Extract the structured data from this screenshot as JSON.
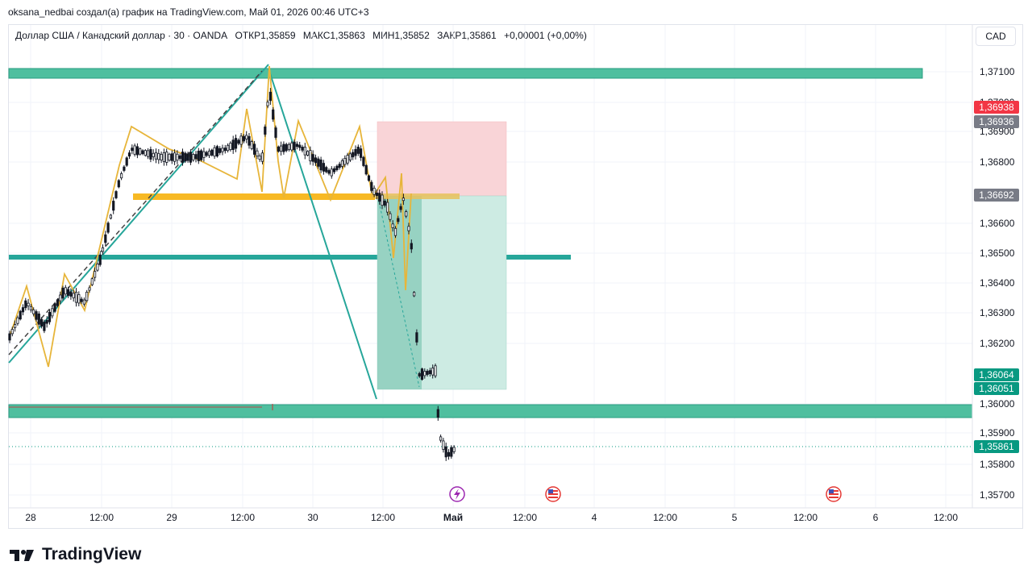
{
  "caption": "oksana_nedbai создал(а) график на TradingView.com, Май 01, 2026 00:46 UTC+3",
  "header": {
    "symbol": "Доллар США / Канадский доллар · 30 · OANDA",
    "open": "ОТКР1,35859",
    "high": "МАКС1,35863",
    "low": "МИН1,35852",
    "close": "ЗАКР1,35861",
    "change": "+0,00001 (+0,00%)",
    "currency": "CAD"
  },
  "price_axis": {
    "ticks": [
      "1,37100",
      "1,37000",
      "1,36900",
      "1,36800",
      "1,36600",
      "1,36500",
      "1,36400",
      "1,36300",
      "1,36200",
      "1,36000",
      "1,35900",
      "1,35800",
      "1,35700"
    ],
    "badges": [
      {
        "label": "1,36938",
        "color": "#f23645"
      },
      {
        "label": "1,36936",
        "color": "#787b86"
      },
      {
        "label": "1,36692",
        "color": "#787b86"
      },
      {
        "label": "1,36064",
        "color": "#089981"
      },
      {
        "label": "1,36051",
        "color": "#089981"
      },
      {
        "label": "1,35861",
        "color": "#089981"
      }
    ]
  },
  "time_axis": {
    "labels": [
      "28",
      "12:00",
      "29",
      "12:00",
      "30",
      "12:00",
      "Май",
      "12:00",
      "4",
      "12:00",
      "5",
      "12:00",
      "6",
      "12:00"
    ]
  },
  "events": [
    "flash-event-icon",
    "us-flag-icon",
    "us-flag-icon"
  ],
  "colors": {
    "teal_zone": "#4fbf9f",
    "teal_line": "#26a69a",
    "gold": "#f7b924",
    "stop_zone": "#f9d4d7",
    "target_zone": "#cdebe3",
    "candle": "#131722"
  },
  "brand": "TradingView"
}
